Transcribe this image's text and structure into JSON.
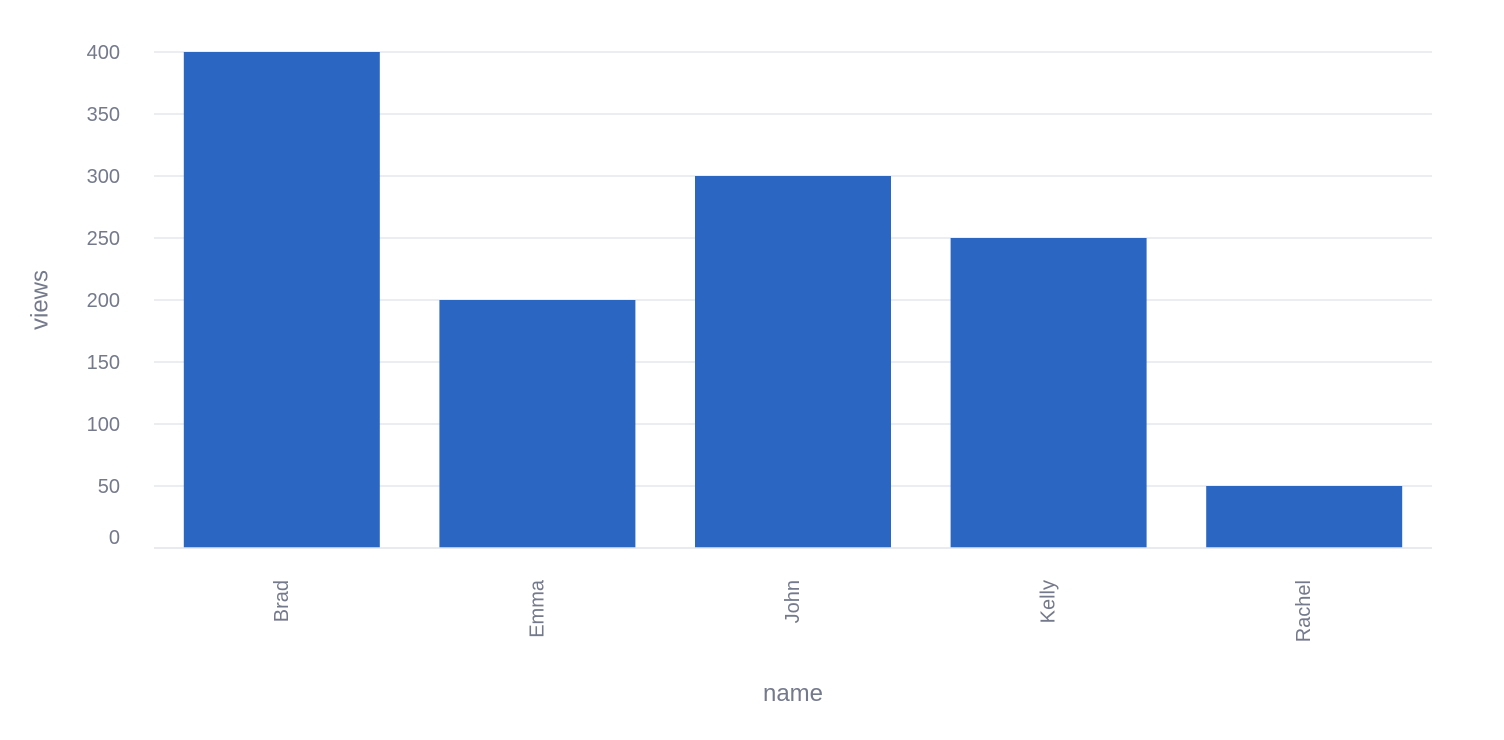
{
  "chart_data": {
    "type": "bar",
    "categories": [
      "Brad",
      "Emma",
      "John",
      "Kelly",
      "Rachel"
    ],
    "values": [
      400,
      200,
      300,
      250,
      50
    ],
    "title": "",
    "xlabel": "name",
    "ylabel": "views",
    "ylim": [
      0,
      400
    ],
    "yticks": [
      0,
      50,
      100,
      150,
      200,
      250,
      300,
      350,
      400
    ],
    "grid": true,
    "legend": "none",
    "colors": {
      "bar": "#2b66c2",
      "grid": "#e5e7eb",
      "text": "#747a8c"
    }
  }
}
